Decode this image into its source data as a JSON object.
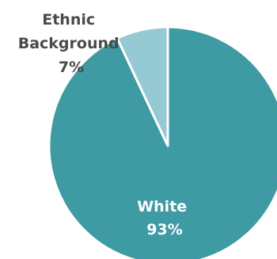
{
  "chart_data": {
    "type": "pie",
    "title": "",
    "slices": [
      {
        "label": "White",
        "value": 93,
        "value_label": "93%",
        "color": "#3e9aa3"
      },
      {
        "label": "Ethnic Background",
        "label_lines": [
          "Ethnic",
          "Background"
        ],
        "value": 7,
        "value_label": "7%",
        "color": "#95c9d3"
      }
    ],
    "start_angle": "12 o'clock",
    "direction": "clockwise",
    "slice_border_color": "#ffffff",
    "legend": "none"
  }
}
